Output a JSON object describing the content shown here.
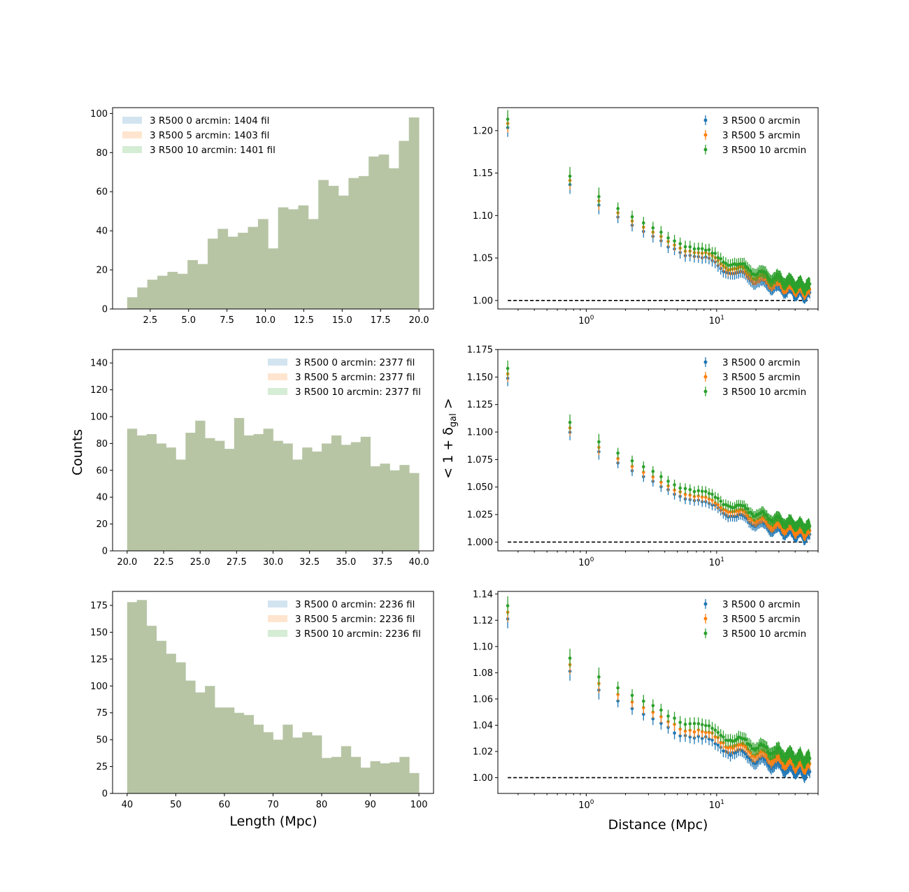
{
  "figure": {
    "hist_ylabel": "Counts",
    "hist_xlabel": "Length (Mpc)",
    "prof_ylabel_prefix": "< 1 + δ",
    "prof_ylabel_sub": "gal",
    "prof_ylabel_suffix": " >",
    "prof_xlabel": "Distance (Mpc)"
  },
  "colors": {
    "blue": "#1f77b4",
    "orange": "#ff7f0e",
    "green": "#2ca02c",
    "hist_fill": "#b7c5a5"
  },
  "chart_data": [
    {
      "type": "bar",
      "kind": "histogram",
      "xlim": [
        0.05,
        20.95
      ],
      "ylim": [
        0,
        103
      ],
      "xticks": [
        2.5,
        5.0,
        7.5,
        10.0,
        12.5,
        15.0,
        17.5,
        20.0
      ],
      "xtick_labels": [
        "2.5",
        "5.0",
        "7.5",
        "10.0",
        "12.5",
        "15.0",
        "17.5",
        "20.0"
      ],
      "yticks": [
        0,
        20,
        40,
        60,
        80,
        100
      ],
      "ytick_labels": [
        "0",
        "20",
        "40",
        "60",
        "80",
        "100"
      ],
      "bin_edges_range": [
        1,
        20
      ],
      "counts": [
        6,
        11,
        15,
        17,
        19,
        18,
        25,
        23,
        36,
        41,
        37,
        39,
        42,
        46,
        31,
        52,
        51,
        53,
        46,
        66,
        63,
        58,
        67,
        68,
        78,
        79,
        72,
        86,
        98
      ],
      "legend_position": "upper-left",
      "legend": [
        "3 R500 0 arcmin: 1404 fil",
        "3 R500 5 arcmin: 1403 fil",
        "3 R500 10 arcmin: 1401 fil"
      ]
    },
    {
      "type": "scatter",
      "kind": "profile",
      "xscale": "log",
      "xlim": [
        0.21,
        60
      ],
      "ylim": [
        0.99,
        1.227
      ],
      "yticks": [
        1.0,
        1.05,
        1.1,
        1.15,
        1.2
      ],
      "ytick_labels": [
        "1.00",
        "1.05",
        "1.10",
        "1.15",
        "1.20"
      ],
      "xticks": [
        1,
        10
      ],
      "xtick_labels": [
        "10^0",
        "10^1"
      ],
      "amp": 0.205,
      "noise": 0.004,
      "offsets": [
        0,
        0.005,
        0.01
      ],
      "err": 0.009,
      "baseline": 1.0,
      "legend_position": "upper-right",
      "legend": [
        "3 R500 0 arcmin",
        "3 R500 5 arcmin",
        "3 R500 10 arcmin"
      ]
    },
    {
      "type": "bar",
      "kind": "histogram",
      "xlim": [
        19,
        41
      ],
      "ylim": [
        0,
        150
      ],
      "xticks": [
        20.0,
        22.5,
        25.0,
        27.5,
        30.0,
        32.5,
        35.0,
        37.5,
        40.0
      ],
      "xtick_labels": [
        "20.0",
        "22.5",
        "25.0",
        "27.5",
        "30.0",
        "32.5",
        "35.0",
        "37.5",
        "40.0"
      ],
      "yticks": [
        0,
        20,
        40,
        60,
        80,
        100,
        120,
        140
      ],
      "ytick_labels": [
        "0",
        "20",
        "40",
        "60",
        "80",
        "100",
        "120",
        "140"
      ],
      "bin_edges_range": [
        20,
        40
      ],
      "counts": [
        91,
        86,
        87,
        80,
        77,
        68,
        88,
        97,
        84,
        82,
        76,
        99,
        86,
        87,
        91,
        82,
        80,
        68,
        77,
        74,
        80,
        86,
        79,
        81,
        85,
        63,
        65,
        60,
        64,
        58
      ],
      "legend_position": "upper-right",
      "legend": [
        "3 R500 0 arcmin: 2377 fil",
        "3 R500 5 arcmin: 2377 fil",
        "3 R500 10 arcmin: 2377 fil"
      ]
    },
    {
      "type": "scatter",
      "kind": "profile",
      "xscale": "log",
      "xlim": [
        0.21,
        60
      ],
      "ylim": [
        0.992,
        1.175
      ],
      "yticks": [
        1.0,
        1.025,
        1.05,
        1.075,
        1.1,
        1.125,
        1.15,
        1.175
      ],
      "ytick_labels": [
        "1.000",
        "1.025",
        "1.050",
        "1.075",
        "1.100",
        "1.125",
        "1.150",
        "1.175"
      ],
      "xticks": [
        1,
        10
      ],
      "xtick_labels": [
        "10^0",
        "10^1"
      ],
      "amp": 0.15,
      "noise": 0.003,
      "offsets": [
        0,
        0.004,
        0.009
      ],
      "err": 0.006,
      "baseline": 1.0,
      "legend_position": "upper-right",
      "legend": [
        "3 R500 0 arcmin",
        "3 R500 5 arcmin",
        "3 R500 10 arcmin"
      ]
    },
    {
      "type": "bar",
      "kind": "histogram",
      "xlim": [
        37,
        103
      ],
      "ylim": [
        0,
        188
      ],
      "xticks": [
        40,
        50,
        60,
        70,
        80,
        90,
        100
      ],
      "xtick_labels": [
        "40",
        "50",
        "60",
        "70",
        "80",
        "90",
        "100"
      ],
      "yticks": [
        0,
        25,
        50,
        75,
        100,
        125,
        150,
        175
      ],
      "ytick_labels": [
        "0",
        "25",
        "50",
        "75",
        "100",
        "125",
        "150",
        "175"
      ],
      "bin_edges_range": [
        40,
        100
      ],
      "counts": [
        178,
        180,
        156,
        142,
        130,
        122,
        105,
        94,
        100,
        80,
        80,
        75,
        73,
        64,
        57,
        50,
        64,
        52,
        57,
        54,
        33,
        34,
        44,
        34,
        24,
        30,
        28,
        29,
        34,
        19
      ],
      "legend_position": "upper-right",
      "legend": [
        "3 R500 0 arcmin: 2236 fil",
        "3 R500 5 arcmin: 2236 fil",
        "3 R500 10 arcmin: 2236 fil"
      ]
    },
    {
      "type": "scatter",
      "kind": "profile",
      "xscale": "log",
      "xlim": [
        0.21,
        60
      ],
      "ylim": [
        0.988,
        1.142
      ],
      "yticks": [
        1.0,
        1.02,
        1.04,
        1.06,
        1.08,
        1.1,
        1.12,
        1.14
      ],
      "ytick_labels": [
        "1.00",
        "1.02",
        "1.04",
        "1.06",
        "1.08",
        "1.10",
        "1.12",
        "1.14"
      ],
      "xticks": [
        1,
        10
      ],
      "xtick_labels": [
        "10^0",
        "10^1"
      ],
      "amp": 0.122,
      "noise": 0.003,
      "offsets": [
        0,
        0.005,
        0.01
      ],
      "err": 0.006,
      "baseline": 1.0,
      "legend_position": "upper-right",
      "legend": [
        "3 R500 0 arcmin",
        "3 R500 5 arcmin",
        "3 R500 10 arcmin"
      ]
    }
  ]
}
